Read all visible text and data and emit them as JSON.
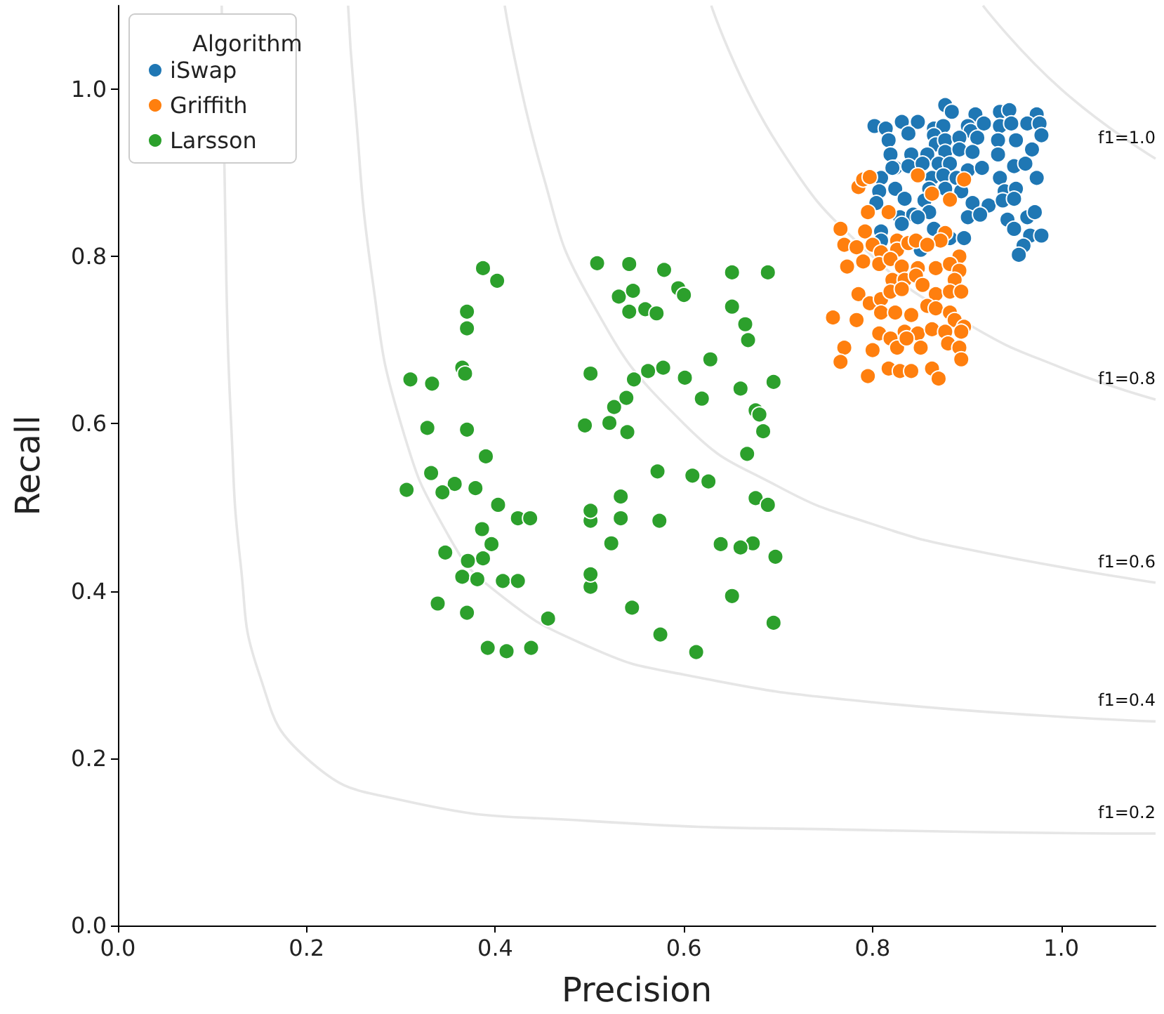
{
  "chart_data": {
    "type": "scatter",
    "xlabel": "Precision",
    "ylabel": "Recall",
    "legend_title": "Algorithm",
    "legend": "top left",
    "grid": false,
    "marker": "circle",
    "xlim": [
      0,
      1.1
    ],
    "ylim": [
      0,
      1.1
    ],
    "xticks": [
      {
        "value": 0,
        "label": "0.0"
      },
      0.2,
      0.4,
      0.6,
      0.8,
      {
        "value": 1,
        "label": "1.0"
      }
    ],
    "yticks": [
      {
        "value": 0,
        "label": "0.0"
      },
      0.2,
      0.4,
      0.6,
      0.8,
      {
        "value": 1,
        "label": "1.0"
      }
    ],
    "series": [
      {
        "name": "f1=0.2",
        "type": "line",
        "marker": "none",
        "color": "#e6e6e6",
        "x": [
          0.11,
          0.115,
          0.12,
          0.13,
          0.15,
          0.2,
          0.3,
          0.5,
          0.8,
          1.1
        ],
        "values": [
          1.1,
          0.767,
          0.6,
          0.433,
          0.3,
          0.2,
          0.15,
          0.125,
          0.114,
          0.11
        ]
      },
      {
        "name": "f1=0.4",
        "type": "line",
        "marker": "none",
        "color": "#e6e6e6",
        "x": [
          0.244,
          0.25,
          0.27,
          0.3,
          0.35,
          0.4,
          0.5,
          0.6,
          0.8,
          1.1
        ],
        "values": [
          1.1,
          1.0,
          0.771,
          0.6,
          0.467,
          0.4,
          0.333,
          0.3,
          0.267,
          0.244
        ]
      },
      {
        "name": "f1=0.6",
        "type": "line",
        "marker": "none",
        "color": "#e6e6e6",
        "x": [
          0.41,
          0.45,
          0.5,
          0.6,
          0.7,
          0.8,
          0.9,
          1.1
        ],
        "values": [
          1.1,
          0.9,
          0.75,
          0.6,
          0.525,
          0.48,
          0.45,
          0.41
        ]
      },
      {
        "name": "f1=0.8",
        "type": "line",
        "marker": "none",
        "color": "#e6e6e6",
        "x": [
          0.629,
          0.7,
          0.8,
          0.9,
          1.0,
          1.1
        ],
        "values": [
          1.1,
          0.933,
          0.8,
          0.72,
          0.667,
          0.629
        ]
      },
      {
        "name": "f1=1.0",
        "type": "line",
        "marker": "none",
        "color": "#e6e6e6",
        "x": [
          0.917,
          1.0,
          1.1
        ],
        "values": [
          1.1,
          1.0,
          0.917
        ]
      },
      {
        "name": "iSwap",
        "color": "#1f77b4",
        "x": [
          0.877,
          0.884,
          0.909,
          0.935,
          0.945,
          0.974,
          0.802,
          0.814,
          0.831,
          0.848,
          0.838,
          0.865,
          0.875,
          0.901,
          0.904,
          0.918,
          0.935,
          0.947,
          0.964,
          0.977,
          0.979,
          0.817,
          0.865,
          0.867,
          0.877,
          0.892,
          0.911,
          0.933,
          0.952,
          0.819,
          0.841,
          0.858,
          0.877,
          0.892,
          0.906,
          0.933,
          0.969,
          0.824,
          0.838,
          0.853,
          0.87,
          0.882,
          0.901,
          0.916,
          0.95,
          0.962,
          0.809,
          0.821,
          0.863,
          0.875,
          0.889,
          0.935,
          0.974,
          0.807,
          0.824,
          0.86,
          0.877,
          0.894,
          0.94,
          0.952,
          0.804,
          0.834,
          0.855,
          0.906,
          0.923,
          0.938,
          0.95,
          0.829,
          0.843,
          0.86,
          0.901,
          0.914,
          0.943,
          0.964,
          0.972,
          0.809,
          0.831,
          0.848,
          0.865,
          0.882,
          0.897,
          0.95,
          0.967,
          0.979,
          0.809,
          0.851,
          0.96,
          0.955
        ],
        "values": [
          0.981,
          0.973,
          0.97,
          0.973,
          0.975,
          0.97,
          0.956,
          0.953,
          0.961,
          0.961,
          0.947,
          0.953,
          0.956,
          0.956,
          0.95,
          0.959,
          0.956,
          0.959,
          0.959,
          0.959,
          0.945,
          0.939,
          0.945,
          0.934,
          0.939,
          0.942,
          0.942,
          0.939,
          0.939,
          0.922,
          0.922,
          0.922,
          0.925,
          0.928,
          0.925,
          0.922,
          0.928,
          0.906,
          0.908,
          0.911,
          0.911,
          0.911,
          0.903,
          0.906,
          0.908,
          0.911,
          0.894,
          0.906,
          0.894,
          0.897,
          0.894,
          0.894,
          0.894,
          0.878,
          0.881,
          0.881,
          0.881,
          0.878,
          0.878,
          0.881,
          0.864,
          0.869,
          0.867,
          0.864,
          0.861,
          0.867,
          0.869,
          0.847,
          0.85,
          0.853,
          0.847,
          0.85,
          0.844,
          0.847,
          0.853,
          0.83,
          0.839,
          0.847,
          0.833,
          0.822,
          0.822,
          0.833,
          0.825,
          0.825,
          0.819,
          0.808,
          0.813,
          0.802
        ]
      },
      {
        "name": "Griffith",
        "color": "#ff7f0e",
        "x": [
          0.785,
          0.79,
          0.797,
          0.848,
          0.897,
          0.863,
          0.882,
          0.795,
          0.817,
          0.766,
          0.792,
          0.826,
          0.877,
          0.872,
          0.77,
          0.783,
          0.8,
          0.809,
          0.826,
          0.838,
          0.846,
          0.858,
          0.892,
          0.773,
          0.79,
          0.807,
          0.819,
          0.831,
          0.848,
          0.867,
          0.882,
          0.892,
          0.821,
          0.834,
          0.846,
          0.887,
          0.785,
          0.797,
          0.809,
          0.819,
          0.831,
          0.853,
          0.867,
          0.882,
          0.894,
          0.758,
          0.783,
          0.809,
          0.824,
          0.841,
          0.858,
          0.867,
          0.882,
          0.887,
          0.897,
          0.807,
          0.819,
          0.834,
          0.848,
          0.863,
          0.877,
          0.894,
          0.77,
          0.8,
          0.826,
          0.836,
          0.851,
          0.88,
          0.892,
          0.766,
          0.795,
          0.817,
          0.829,
          0.841,
          0.863,
          0.87,
          0.894
        ],
        "values": [
          0.883,
          0.892,
          0.895,
          0.897,
          0.892,
          0.875,
          0.868,
          0.853,
          0.853,
          0.833,
          0.83,
          0.819,
          0.828,
          0.819,
          0.814,
          0.811,
          0.814,
          0.805,
          0.808,
          0.816,
          0.819,
          0.814,
          0.8,
          0.788,
          0.794,
          0.791,
          0.797,
          0.788,
          0.786,
          0.786,
          0.791,
          0.783,
          0.772,
          0.772,
          0.777,
          0.772,
          0.755,
          0.744,
          0.749,
          0.758,
          0.761,
          0.766,
          0.755,
          0.758,
          0.758,
          0.727,
          0.724,
          0.733,
          0.733,
          0.73,
          0.741,
          0.738,
          0.733,
          0.724,
          0.716,
          0.708,
          0.702,
          0.71,
          0.708,
          0.713,
          0.71,
          0.71,
          0.691,
          0.688,
          0.691,
          0.702,
          0.691,
          0.696,
          0.691,
          0.674,
          0.657,
          0.666,
          0.663,
          0.663,
          0.666,
          0.654,
          0.677
        ]
      },
      {
        "name": "Larsson",
        "color": "#2ca02c",
        "x": [
          0.387,
          0.402,
          0.37,
          0.37,
          0.365,
          0.368,
          0.31,
          0.333,
          0.328,
          0.37,
          0.39,
          0.332,
          0.357,
          0.344,
          0.379,
          0.403,
          0.424,
          0.437,
          0.386,
          0.396,
          0.387,
          0.371,
          0.347,
          0.365,
          0.381,
          0.408,
          0.424,
          0.339,
          0.37,
          0.456,
          0.392,
          0.412,
          0.438,
          0.306,
          0.508,
          0.542,
          0.579,
          0.651,
          0.689,
          0.531,
          0.546,
          0.594,
          0.6,
          0.542,
          0.559,
          0.571,
          0.651,
          0.665,
          0.668,
          0.628,
          0.501,
          0.547,
          0.562,
          0.578,
          0.601,
          0.619,
          0.66,
          0.695,
          0.526,
          0.539,
          0.676,
          0.68,
          0.684,
          0.521,
          0.495,
          0.54,
          0.667,
          0.609,
          0.572,
          0.626,
          0.676,
          0.689,
          0.533,
          0.501,
          0.501,
          0.533,
          0.574,
          0.673,
          0.639,
          0.66,
          0.697,
          0.523,
          0.501,
          0.501,
          0.545,
          0.651,
          0.695,
          0.575,
          0.613
        ],
        "values": [
          0.786,
          0.771,
          0.734,
          0.714,
          0.667,
          0.66,
          0.653,
          0.648,
          0.595,
          0.593,
          0.561,
          0.541,
          0.528,
          0.518,
          0.523,
          0.503,
          0.487,
          0.487,
          0.474,
          0.456,
          0.439,
          0.436,
          0.446,
          0.417,
          0.414,
          0.412,
          0.412,
          0.385,
          0.374,
          0.367,
          0.332,
          0.328,
          0.332,
          0.521,
          0.792,
          0.791,
          0.784,
          0.781,
          0.781,
          0.752,
          0.759,
          0.762,
          0.754,
          0.734,
          0.737,
          0.732,
          0.74,
          0.719,
          0.7,
          0.677,
          0.66,
          0.653,
          0.663,
          0.667,
          0.655,
          0.63,
          0.642,
          0.65,
          0.62,
          0.631,
          0.616,
          0.611,
          0.591,
          0.601,
          0.598,
          0.59,
          0.564,
          0.538,
          0.543,
          0.531,
          0.511,
          0.503,
          0.513,
          0.484,
          0.496,
          0.487,
          0.484,
          0.457,
          0.456,
          0.452,
          0.441,
          0.457,
          0.405,
          0.42,
          0.38,
          0.394,
          0.362,
          0.348,
          0.327
        ]
      }
    ]
  }
}
